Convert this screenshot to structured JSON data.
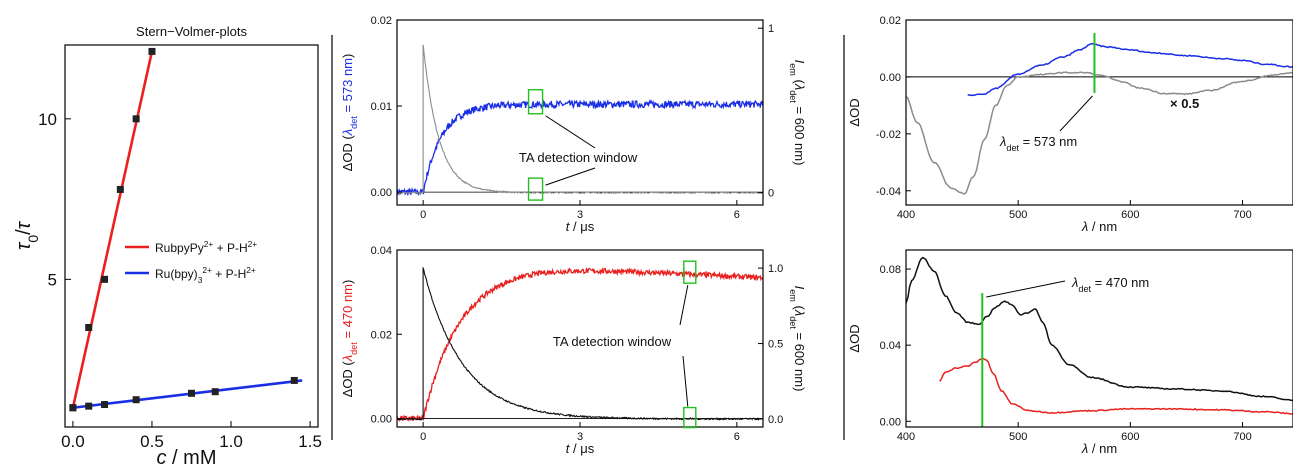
{
  "chart_data": [
    {
      "id": "stern-volmer",
      "type": "scatter",
      "title": "Stern−Volmer-plots",
      "xlabel": "c / mM",
      "ylabel": "τ0/τ",
      "xlim": [
        -0.05,
        1.55
      ],
      "ylim": [
        0.4,
        12.3
      ],
      "xticks": [
        "0.0",
        "0.5",
        "1.0",
        "1.5"
      ],
      "yticks": [
        "5",
        "10"
      ],
      "legend_position": "center-right",
      "series": [
        {
          "name": "RubpyPy2+ + P-H2+",
          "color": "#e8201e",
          "x": [
            0.0,
            0.1,
            0.2,
            0.3,
            0.4,
            0.5
          ],
          "y": [
            1.0,
            3.5,
            5.0,
            7.8,
            10.0,
            12.1
          ],
          "fit": [
            [
              0.0,
              1.0
            ],
            [
              0.5,
              12.1
            ]
          ]
        },
        {
          "name": "Ru(bpy)32+ + P-H2+",
          "color": "#1a2ee6",
          "x": [
            0.0,
            0.1,
            0.2,
            0.4,
            0.75,
            0.9,
            1.4
          ],
          "y": [
            1.0,
            1.05,
            1.1,
            1.25,
            1.45,
            1.5,
            1.85
          ],
          "fit": [
            [
              0.0,
              1.0
            ],
            [
              1.45,
              1.85
            ]
          ]
        }
      ]
    },
    {
      "id": "kinetics-573",
      "type": "line",
      "xlabel": "t / μs",
      "ylabel_left": "ΔOD (λdet = 573 nm)",
      "ylabel_right": "Iem (λdet = 600 nm)",
      "xlim": [
        -0.5,
        6.5
      ],
      "ylim": [
        -0.0015,
        0.02
      ],
      "ylim_right": [
        -0.075,
        1.05
      ],
      "xticks": [
        0,
        3,
        6
      ],
      "yticks_left": [
        "0.00",
        "0.01",
        "0.02"
      ],
      "yticks_right": [
        "0",
        "1"
      ],
      "annotation": "TA detection window",
      "series": [
        {
          "name": "ΔOD 573 nm",
          "axis": "left",
          "color": "#1a2ee6",
          "shape": "rise",
          "t0": 0.0,
          "tau": 0.35,
          "plateau": 0.0102,
          "noise": 0.0004
        },
        {
          "name": "Iem 600 nm",
          "axis": "right",
          "color": "#8c8c8c",
          "shape": "decay",
          "t0": 0.0,
          "tau": 0.3,
          "peak": 0.9,
          "noise": 0.004
        }
      ]
    },
    {
      "id": "kinetics-470",
      "type": "line",
      "xlabel": "t / μs",
      "ylabel_left": "ΔOD (λdet = 470 nm)",
      "ylabel_right": "Iem (λdet = 600 nm)",
      "xlim": [
        -0.5,
        6.5
      ],
      "ylim": [
        -0.002,
        0.04
      ],
      "ylim_right": [
        -0.053,
        1.12
      ],
      "xticks": [
        0,
        3,
        6
      ],
      "yticks_left": [
        "0.00",
        "0.02",
        "0.04"
      ],
      "yticks_right": [
        "0.0",
        "0.5",
        "1.0"
      ],
      "annotation": "TA detection window",
      "series": [
        {
          "name": "ΔOD 470 nm",
          "axis": "left",
          "color": "#e8201e",
          "shape": "rise-decay",
          "t0": 0.0,
          "tau": 0.7,
          "plateau": 0.036,
          "slow_decay": 0.0006,
          "noise": 0.0006
        },
        {
          "name": "Iem 600 nm",
          "axis": "right",
          "color": "#111111",
          "shape": "decay",
          "t0": 0.0,
          "tau": 0.75,
          "peak": 1.0,
          "noise": 0.005
        }
      ]
    },
    {
      "id": "spectrum-573",
      "type": "line",
      "xlabel": "λ / nm",
      "ylabel": "ΔOD",
      "xlim": [
        400,
        745
      ],
      "ylim": [
        -0.045,
        0.02
      ],
      "xticks": [
        400,
        500,
        600,
        700
      ],
      "yticks": [
        "-0.04",
        "-0.02",
        "0.00",
        "0.02"
      ],
      "marker_line": {
        "x": 568,
        "color": "#22c020",
        "label": "λdet = 573 nm"
      },
      "scale_label": "× 0.5",
      "series": [
        {
          "name": "blue spectrum",
          "color": "#1a2ee6",
          "x": [
            455,
            470,
            480,
            500,
            520,
            540,
            555,
            565,
            580,
            600,
            620,
            650,
            680,
            700,
            720,
            745
          ],
          "y": [
            -0.0065,
            -0.006,
            -0.004,
            0.001,
            0.004,
            0.007,
            0.0095,
            0.0115,
            0.0105,
            0.0095,
            0.0085,
            0.0075,
            0.0065,
            0.0058,
            0.0045,
            0.0035
          ]
        },
        {
          "name": "gray spectrum",
          "color": "#8c8c8c",
          "x": [
            400,
            410,
            425,
            440,
            452,
            460,
            470,
            480,
            490,
            500,
            520,
            540,
            560,
            575,
            590,
            610,
            630,
            650,
            670,
            700,
            730,
            745
          ],
          "y": [
            -0.007,
            -0.016,
            -0.03,
            -0.039,
            -0.041,
            -0.035,
            -0.022,
            -0.01,
            -0.003,
            0.0,
            0.0008,
            0.0015,
            0.0015,
            0.0005,
            -0.0015,
            -0.004,
            -0.0058,
            -0.006,
            -0.0048,
            -0.0015,
            0.0008,
            0.0015
          ]
        }
      ]
    },
    {
      "id": "spectrum-470",
      "type": "line",
      "xlabel": "λ / nm",
      "ylabel": "ΔOD",
      "xlim": [
        400,
        745
      ],
      "ylim": [
        -0.003,
        0.09
      ],
      "xticks": [
        400,
        500,
        600,
        700
      ],
      "yticks": [
        "0.00",
        "0.04",
        "0.08"
      ],
      "marker_line": {
        "x": 468,
        "color": "#22c020",
        "label": "λdet = 470 nm"
      },
      "series": [
        {
          "name": "black spectrum",
          "color": "#111111",
          "x": [
            400,
            405,
            415,
            425,
            435,
            445,
            455,
            465,
            472,
            480,
            488,
            495,
            502,
            508,
            515,
            522,
            530,
            545,
            565,
            600,
            640,
            680,
            720,
            745
          ],
          "y": [
            0.062,
            0.074,
            0.086,
            0.079,
            0.066,
            0.057,
            0.052,
            0.051,
            0.055,
            0.06,
            0.063,
            0.061,
            0.056,
            0.057,
            0.059,
            0.052,
            0.04,
            0.03,
            0.023,
            0.018,
            0.017,
            0.016,
            0.013,
            0.011
          ]
        },
        {
          "name": "red spectrum",
          "color": "#e8201e",
          "x": [
            430,
            435,
            445,
            455,
            462,
            468,
            472,
            478,
            485,
            495,
            510,
            530,
            560,
            600,
            640,
            680,
            720,
            745
          ],
          "y": [
            0.021,
            0.026,
            0.028,
            0.029,
            0.031,
            0.033,
            0.032,
            0.025,
            0.016,
            0.009,
            0.0055,
            0.0045,
            0.0055,
            0.0065,
            0.0065,
            0.006,
            0.005,
            0.004
          ]
        }
      ]
    }
  ]
}
